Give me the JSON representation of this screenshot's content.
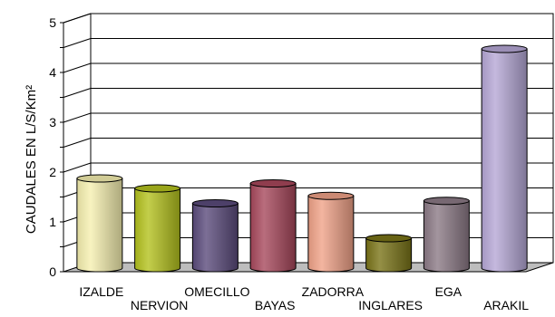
{
  "chart_data": {
    "type": "bar",
    "title": "",
    "xlabel": "",
    "ylabel": "CAUDALES EN L/S/Km²",
    "ylim": [
      0,
      5
    ],
    "yticks": [
      0,
      1,
      2,
      3,
      4,
      5
    ],
    "grid": true,
    "legend": "none",
    "categories": [
      "IZALDE",
      "NERVION",
      "OMECILLO",
      "BAYAS",
      "ZADORRA",
      "INGLARES",
      "EGA",
      "ARAKIL"
    ],
    "values": [
      1.8,
      1.6,
      1.3,
      1.7,
      1.45,
      0.6,
      1.35,
      4.4
    ],
    "colors": [
      "#f6f0b0",
      "#b4c21e",
      "#5b4b7c",
      "#a8485c",
      "#f0a288",
      "#7a7418",
      "#8c7a86",
      "#b6a8d6"
    ],
    "floor_color": "#bdbdbd"
  }
}
